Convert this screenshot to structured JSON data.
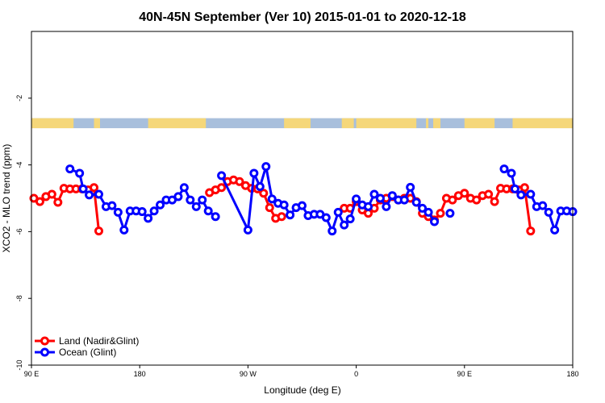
{
  "chart_data": {
    "type": "line",
    "title": "40N-45N September (Ver 10)   2015-01-01 to 2020-12-18",
    "xlabel": "Longitude (deg E)",
    "ylabel": "XCO2 - MLO trend (ppm)",
    "xlim": [
      90,
      540
    ],
    "ylim": [
      -10,
      0
    ],
    "x_ticks": [
      {
        "value": 90,
        "label": "90 E"
      },
      {
        "value": 180,
        "label": "180"
      },
      {
        "value": 270,
        "label": "90 W"
      },
      {
        "value": 360,
        "label": "0"
      },
      {
        "value": 450,
        "label": "90 E"
      },
      {
        "value": 540,
        "label": "180"
      }
    ],
    "y_ticks": [
      {
        "value": -2,
        "label": "-2"
      },
      {
        "value": -4,
        "label": "-4"
      },
      {
        "value": -6,
        "label": "-6"
      },
      {
        "value": -8,
        "label": "-8"
      },
      {
        "value": -10,
        "label": "-10"
      }
    ],
    "grid": false,
    "legend_position": "bottom-left",
    "land_mask_strip": {
      "y_range": [
        -2.9,
        -2.6
      ],
      "land_color": "#f5d77a",
      "ocean_color": "#a8bfdc",
      "land_segments": [
        [
          90,
          125
        ],
        [
          142,
          147
        ],
        [
          187,
          235
        ],
        [
          300,
          322
        ],
        [
          348,
          358
        ],
        [
          360,
          410
        ],
        [
          418,
          420
        ],
        [
          424,
          430
        ],
        [
          450,
          475
        ],
        [
          490,
          540
        ]
      ]
    },
    "series": [
      {
        "name": "Land (Nadir&Glint)",
        "color": "#ff0000",
        "segments": [
          [
            [
              92,
              -5.0
            ],
            [
              97,
              -5.1
            ],
            [
              102,
              -4.95
            ],
            [
              107,
              -4.88
            ],
            [
              112,
              -5.12
            ],
            [
              117,
              -4.7
            ],
            [
              122,
              -4.72
            ],
            [
              127,
              -4.72
            ],
            [
              132,
              -4.72
            ],
            [
              137,
              -4.75
            ],
            [
              142,
              -4.68
            ],
            [
              146,
              -5.98
            ]
          ],
          [
            [
              238,
              -4.83
            ],
            [
              243,
              -4.75
            ],
            [
              248,
              -4.68
            ],
            [
              253,
              -4.5
            ],
            [
              258,
              -4.45
            ],
            [
              263,
              -4.5
            ],
            [
              268,
              -4.62
            ],
            [
              273,
              -4.7
            ],
            [
              278,
              -4.72
            ],
            [
              283,
              -4.85
            ],
            [
              288,
              -5.28
            ],
            [
              293,
              -5.6
            ],
            [
              298,
              -5.55
            ]
          ],
          [
            [
              350,
              -5.3
            ],
            [
              355,
              -5.3
            ],
            [
              360,
              -5.1
            ],
            [
              365,
              -5.35
            ],
            [
              370,
              -5.45
            ],
            [
              375,
              -5.3
            ],
            [
              380,
              -5.05
            ],
            [
              385,
              -5.0
            ],
            [
              390,
              -4.95
            ],
            [
              395,
              -5.05
            ],
            [
              400,
              -5.0
            ],
            [
              405,
              -5.0
            ],
            [
              410,
              -5.1
            ],
            [
              415,
              -5.45
            ],
            [
              420,
              -5.55
            ],
            [
              425,
              -5.65
            ],
            [
              430,
              -5.45
            ],
            [
              435,
              -5.0
            ],
            [
              440,
              -5.05
            ],
            [
              445,
              -4.92
            ],
            [
              450,
              -4.85
            ],
            [
              455,
              -5.0
            ],
            [
              460,
              -5.05
            ],
            [
              465,
              -4.92
            ],
            [
              470,
              -4.88
            ],
            [
              475,
              -5.1
            ],
            [
              480,
              -4.7
            ],
            [
              485,
              -4.72
            ],
            [
              490,
              -4.72
            ],
            [
              495,
              -4.75
            ],
            [
              500,
              -4.68
            ],
            [
              505,
              -5.98
            ]
          ]
        ]
      },
      {
        "name": "Ocean (Glint)",
        "color": "#0000ff",
        "segments": [
          [
            [
              122,
              -4.12
            ],
            [
              130,
              -4.25
            ],
            [
              133,
              -4.72
            ],
            [
              138,
              -4.9
            ],
            [
              146,
              -4.88
            ],
            [
              152,
              -5.25
            ],
            [
              157,
              -5.22
            ],
            [
              162,
              -5.42
            ],
            [
              167,
              -5.95
            ],
            [
              172,
              -5.38
            ],
            [
              177,
              -5.38
            ],
            [
              182,
              -5.4
            ],
            [
              187,
              -5.6
            ],
            [
              192,
              -5.38
            ],
            [
              197,
              -5.2
            ],
            [
              202,
              -5.05
            ],
            [
              207,
              -5.05
            ],
            [
              212,
              -4.95
            ],
            [
              217,
              -4.68
            ],
            [
              222,
              -5.05
            ],
            [
              227,
              -5.25
            ],
            [
              232,
              -5.05
            ],
            [
              237,
              -5.38
            ],
            [
              243,
              -5.55
            ]
          ],
          [
            [
              248,
              -4.32
            ],
            [
              270,
              -5.95
            ],
            [
              275,
              -4.25
            ],
            [
              280,
              -4.65
            ],
            [
              285,
              -4.05
            ],
            [
              290,
              -5.02
            ],
            [
              295,
              -5.15
            ],
            [
              300,
              -5.2
            ],
            [
              305,
              -5.5
            ],
            [
              310,
              -5.28
            ],
            [
              315,
              -5.22
            ],
            [
              320,
              -5.52
            ],
            [
              325,
              -5.48
            ],
            [
              330,
              -5.48
            ],
            [
              335,
              -5.58
            ],
            [
              340,
              -5.98
            ],
            [
              345,
              -5.42
            ],
            [
              350,
              -5.8
            ],
            [
              355,
              -5.62
            ],
            [
              360,
              -5.02
            ],
            [
              365,
              -5.2
            ],
            [
              370,
              -5.25
            ],
            [
              375,
              -4.88
            ],
            [
              380,
              -5.0
            ],
            [
              385,
              -5.25
            ],
            [
              390,
              -4.92
            ],
            [
              395,
              -5.05
            ],
            [
              400,
              -5.05
            ],
            [
              405,
              -4.67
            ],
            [
              410,
              -5.12
            ],
            [
              415,
              -5.3
            ],
            [
              420,
              -5.42
            ],
            [
              425,
              -5.7
            ]
          ],
          [
            [
              438,
              -5.45
            ]
          ],
          [
            [
              483,
              -4.12
            ],
            [
              489,
              -4.25
            ],
            [
              492,
              -4.72
            ],
            [
              497,
              -4.9
            ],
            [
              505,
              -4.88
            ],
            [
              510,
              -5.25
            ],
            [
              515,
              -5.22
            ],
            [
              520,
              -5.42
            ],
            [
              525,
              -5.95
            ],
            [
              530,
              -5.38
            ],
            [
              535,
              -5.38
            ],
            [
              540,
              -5.4
            ]
          ]
        ]
      }
    ]
  }
}
